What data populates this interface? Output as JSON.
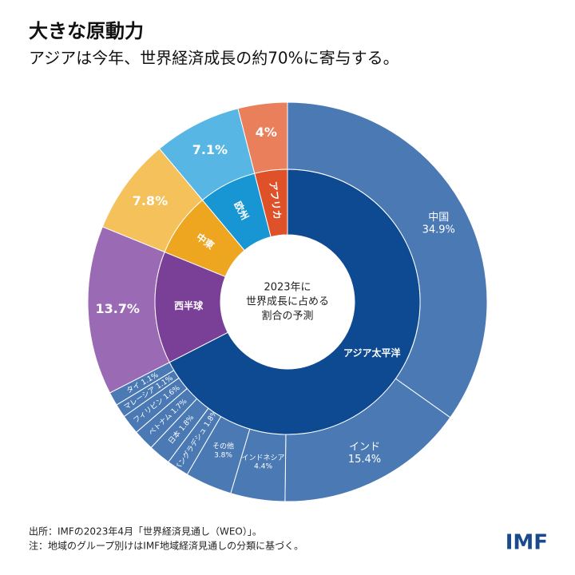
{
  "chart_data": {
    "type": "sunburst",
    "title": "大きな原動力",
    "subtitle": "アジアは今年、世界経済成長の約70%に寄与する。",
    "center_label": [
      "2023年に",
      "世界成長に占める",
      "割合の予測"
    ],
    "groups": [
      {
        "name": "アジア太平洋",
        "color": "#0e4a92",
        "outer_color": "#4a79b4",
        "children": [
          {
            "name": "中国",
            "value": 34.9,
            "value_label": "34.9%"
          },
          {
            "name": "インド",
            "value": 15.4,
            "value_label": "15.4%"
          },
          {
            "name": "インドネシア",
            "value": 4.4,
            "value_label": "4.4%"
          },
          {
            "name": "その他",
            "value": 3.8,
            "value_label": "3.8%"
          },
          {
            "name": "バングラデシュ",
            "value": 1.8,
            "value_label": "1.8%"
          },
          {
            "name": "日本",
            "value": 1.8,
            "value_label": "1.8%"
          },
          {
            "name": "ベトナム",
            "value": 1.7,
            "value_label": "1.7%"
          },
          {
            "name": "フィリピン",
            "value": 1.6,
            "value_label": "1.6%"
          },
          {
            "name": "マレーシア",
            "value": 1.1,
            "value_label": "1.1%"
          },
          {
            "name": "タイ",
            "value": 1.1,
            "value_label": "1.1%"
          }
        ]
      },
      {
        "name": "西半球",
        "color": "#7a3f97",
        "outer_color": "#9a6ab4",
        "value": 13.7,
        "value_label": "13.7%"
      },
      {
        "name": "中東",
        "color": "#eea51f",
        "outer_color": "#f4c15a",
        "value": 7.8,
        "value_label": "7.8%"
      },
      {
        "name": "欧州",
        "color": "#1896d4",
        "outer_color": "#57b6e4",
        "value": 7.1,
        "value_label": "7.1%"
      },
      {
        "name": "アフリカ",
        "color": "#df5128",
        "outer_color": "#ea7f5c",
        "value": 4,
        "value_label": "4%"
      }
    ]
  },
  "footer": {
    "source": "出所：IMFの2023年4月「世界経済見通し（WEO）」。",
    "note": "注：地域のグループ別けはIMF地域経済見通しの分類に基づく。"
  },
  "logo": "IMF"
}
